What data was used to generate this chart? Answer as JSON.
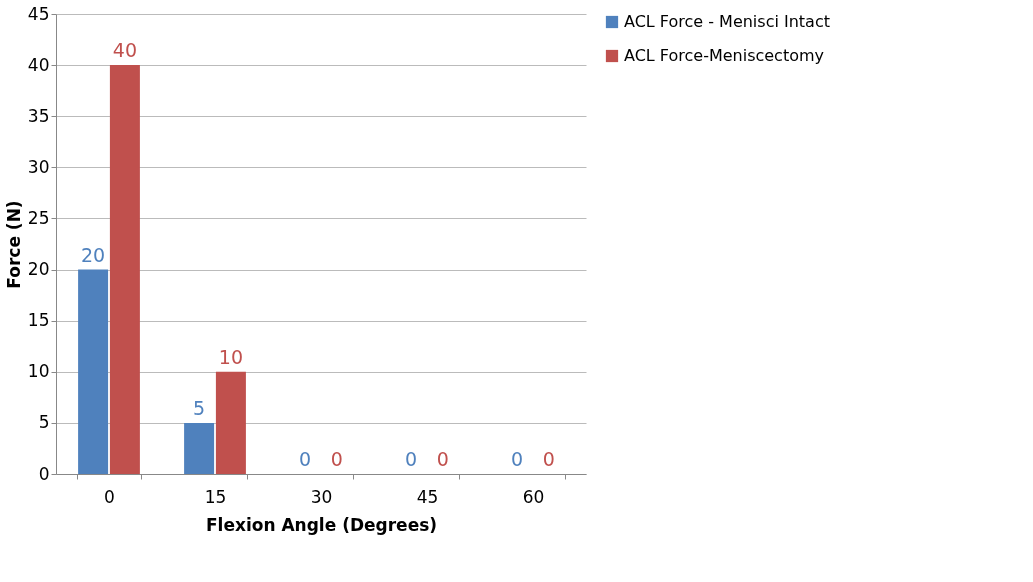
{
  "chart_data": {
    "type": "bar",
    "xlabel": "Flexion Angle (Degrees)",
    "ylabel": "Force (N)",
    "categories": [
      "0",
      "15",
      "30",
      "45",
      "60"
    ],
    "series": [
      {
        "name": "ACL Force - Menisci Intact",
        "color": "#4f81bd",
        "values": [
          20,
          5,
          0,
          0,
          0
        ]
      },
      {
        "name": "ACL Force-Meniscectomy",
        "color": "#c0504d",
        "values": [
          40,
          10,
          0,
          0,
          0
        ]
      }
    ],
    "ylim": [
      0,
      45
    ],
    "yticks": [
      0,
      5,
      10,
      15,
      20,
      25,
      30,
      35,
      40,
      45
    ],
    "grid": "y",
    "legend": "right",
    "data_labels": true
  }
}
